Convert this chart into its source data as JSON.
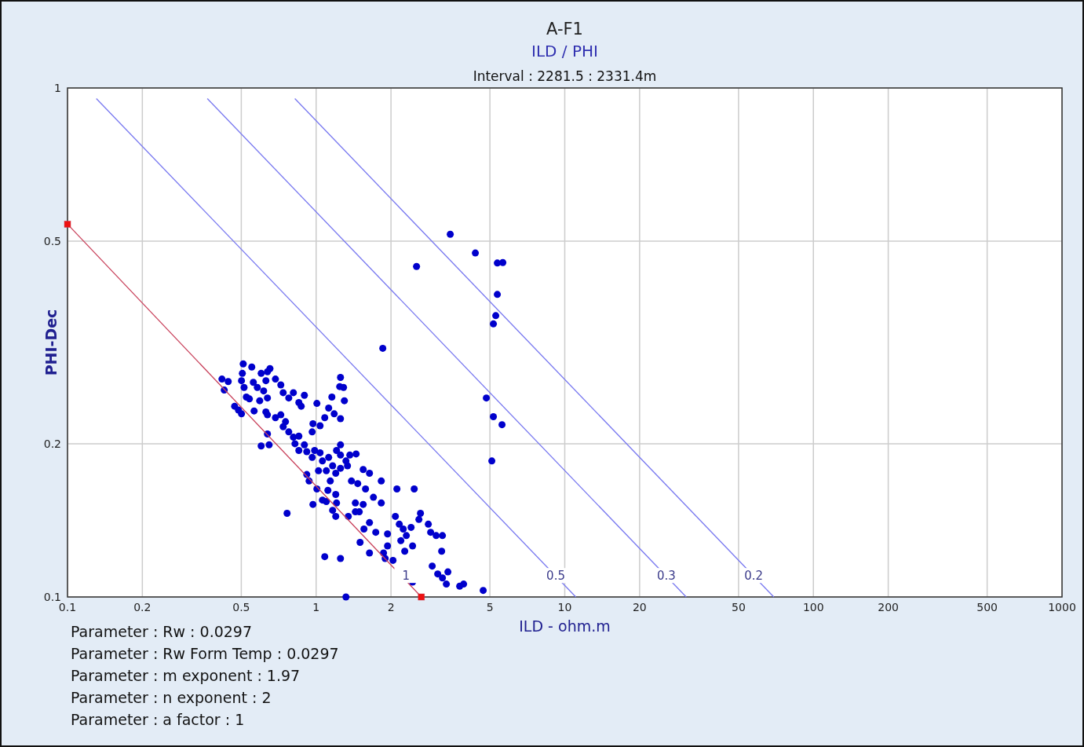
{
  "chart_data": {
    "type": "scatter",
    "title": "A-F1",
    "subtitle": "ILD / PHI",
    "xlabel": "ILD - ohm.m",
    "ylabel": "PHI-Dec",
    "annotations": [
      "Interval  : 2281.5 : 2331.4m",
      "Parameter : Rw   : 0.0297",
      "Parameter : Rw Form Temp : 0.0297",
      "Parameter : m exponent : 1.97",
      "Parameter : n exponent : 2",
      "Parameter : a factor : 1",
      {
        "text": "1",
        "x": 2.3,
        "y": 0.11
      },
      {
        "text": "0.5",
        "x": 9.2,
        "y": 0.11
      },
      {
        "text": "0.3",
        "x": 25.6,
        "y": 0.11
      },
      {
        "text": "0.2",
        "x": 57.5,
        "y": 0.11
      }
    ],
    "log": "xy",
    "grid": true,
    "xlim": [
      0.1,
      1000
    ],
    "xticks": [
      0.1,
      0.2,
      0.5,
      1,
      2,
      5,
      10,
      20,
      50,
      100,
      200,
      500,
      1000
    ],
    "ylim": [
      0.1,
      1
    ],
    "yticks": [
      0.1,
      0.2,
      0.5,
      1
    ],
    "series": [
      {
        "marker": "circle",
        "color": "#0000cc",
        "x": [
          0.509,
          0.551,
          0.418,
          0.443,
          0.427,
          0.505,
          0.501,
          0.513,
          0.524,
          0.47,
          0.487,
          0.501,
          0.539,
          0.559,
          0.58,
          0.601,
          0.637,
          0.652,
          0.628,
          0.686,
          0.721,
          0.615,
          0.637,
          0.593,
          0.563,
          0.628,
          0.637,
          0.737,
          0.776,
          0.81,
          0.897,
          0.852,
          0.871,
          1.007,
          1.253,
          1.244,
          1.289,
          1.157,
          1.299,
          1.123,
          1.182,
          1.253,
          1.083,
          0.971,
          1.037,
          0.964,
          0.686,
          0.721,
          0.753,
          0.737,
          0.776,
          0.637,
          0.601,
          0.647,
          0.81,
          0.852,
          0.822,
          0.897,
          0.852,
          0.917,
          0.986,
          0.964,
          1.037,
          1.06,
          1.123,
          1.208,
          1.253,
          1.253,
          1.318,
          1.366,
          1.448,
          1.165,
          1.253,
          1.337,
          1.199,
          1.099,
          1.022,
          0.917,
          0.937,
          1.007,
          1.14,
          1.115,
          1.199,
          1.208,
          1.099,
          1.06,
          0.971,
          1.165,
          1.199,
          1.347,
          1.438,
          1.546,
          1.438,
          1.491,
          1.387,
          1.47,
          1.58,
          1.546,
          1.639,
          1.828,
          1.7,
          1.828,
          0.764,
          1.639,
          1.737,
          1.557,
          1.502,
          1.639,
          1.937,
          1.937,
          2.113,
          2.48,
          2.083,
          2.16,
          2.628,
          2.59,
          2.24,
          2.409,
          2.191,
          2.306,
          2.443,
          2.272,
          2.826,
          2.888,
          3.039,
          3.221,
          3.198,
          1.867,
          1.895,
          2.038,
          2.93,
          3.083,
          3.388,
          3.221,
          3.34,
          3.779,
          3.919,
          4.698,
          2.443,
          1.083,
          1.253,
          1.318,
          3.463,
          4.369,
          2.534,
          5.355,
          5.634,
          5.355,
          5.278,
          5.163,
          1.854,
          4.837,
          5.163,
          5.593,
          5.089
        ],
        "values": [
          0.287,
          0.283,
          0.268,
          0.265,
          0.255,
          0.275,
          0.266,
          0.258,
          0.247,
          0.237,
          0.233,
          0.229,
          0.245,
          0.264,
          0.258,
          0.275,
          0.277,
          0.281,
          0.266,
          0.268,
          0.261,
          0.254,
          0.246,
          0.243,
          0.232,
          0.231,
          0.228,
          0.252,
          0.246,
          0.252,
          0.249,
          0.241,
          0.237,
          0.24,
          0.27,
          0.259,
          0.258,
          0.247,
          0.243,
          0.235,
          0.229,
          0.224,
          0.225,
          0.219,
          0.217,
          0.211,
          0.225,
          0.228,
          0.221,
          0.216,
          0.211,
          0.209,
          0.198,
          0.199,
          0.206,
          0.207,
          0.2,
          0.199,
          0.194,
          0.193,
          0.194,
          0.188,
          0.192,
          0.185,
          0.188,
          0.194,
          0.199,
          0.19,
          0.185,
          0.19,
          0.191,
          0.181,
          0.179,
          0.181,
          0.175,
          0.177,
          0.177,
          0.174,
          0.169,
          0.163,
          0.169,
          0.162,
          0.159,
          0.153,
          0.154,
          0.155,
          0.152,
          0.148,
          0.144,
          0.144,
          0.153,
          0.152,
          0.147,
          0.147,
          0.169,
          0.167,
          0.163,
          0.178,
          0.175,
          0.169,
          0.157,
          0.153,
          0.146,
          0.14,
          0.134,
          0.136,
          0.128,
          0.122,
          0.133,
          0.126,
          0.163,
          0.163,
          0.144,
          0.139,
          0.146,
          0.142,
          0.136,
          0.137,
          0.129,
          0.132,
          0.126,
          0.123,
          0.139,
          0.134,
          0.132,
          0.132,
          0.123,
          0.122,
          0.119,
          0.118,
          0.115,
          0.111,
          0.112,
          0.109,
          0.106,
          0.105,
          0.106,
          0.103,
          0.107,
          0.12,
          0.119,
          0.1,
          0.516,
          0.474,
          0.446,
          0.453,
          0.454,
          0.393,
          0.357,
          0.344,
          0.308,
          0.246,
          0.226,
          0.218,
          0.185
        ]
      },
      {
        "type": "line",
        "marker": "square",
        "color": "#c8405a",
        "x": [
          0.1,
          2.65
        ],
        "values": [
          0.54,
          0.1
        ]
      },
      {
        "type": "line",
        "marker": "none",
        "color": "#7878f0",
        "x": [
          0.1306,
          11.08
        ],
        "values": [
          0.953,
          0.1
        ]
      },
      {
        "type": "line",
        "marker": "none",
        "color": "#7878f0",
        "x": [
          0.365,
          30.8
        ],
        "values": [
          0.953,
          0.1
        ]
      },
      {
        "type": "line",
        "marker": "none",
        "color": "#7878f0",
        "x": [
          0.821,
          69.3
        ],
        "values": [
          0.953,
          0.1
        ]
      }
    ]
  }
}
